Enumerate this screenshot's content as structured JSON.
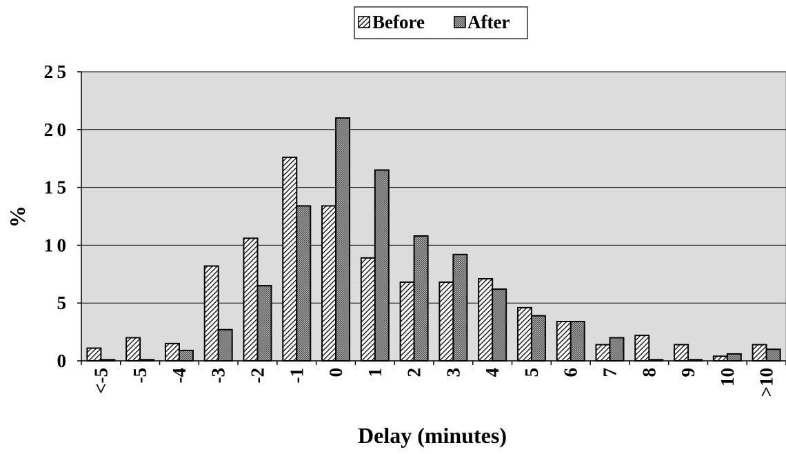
{
  "chart_data": {
    "type": "bar",
    "categories": [
      "<-5",
      "-5",
      "-4",
      "-3",
      "-2",
      "-1",
      "0",
      "1",
      "2",
      "3",
      "4",
      "5",
      "6",
      "7",
      "8",
      "9",
      "10",
      ">10"
    ],
    "series": [
      {
        "name": "Before",
        "values": [
          1.1,
          2.0,
          1.5,
          8.2,
          10.6,
          17.6,
          13.4,
          8.9,
          6.8,
          6.8,
          7.1,
          4.6,
          3.4,
          1.4,
          2.2,
          1.4,
          0.4,
          1.4
        ]
      },
      {
        "name": "After",
        "values": [
          0.1,
          0.1,
          0.9,
          2.7,
          6.5,
          13.4,
          21.0,
          16.5,
          10.8,
          9.2,
          6.2,
          3.9,
          3.4,
          2.0,
          0.1,
          0.1,
          0.6,
          1.0
        ]
      }
    ],
    "xlabel": "Delay  (minutes)",
    "ylabel": "%",
    "ylim": [
      0,
      25
    ],
    "yticks": [
      0,
      5,
      10,
      15,
      20,
      25
    ],
    "grid": true,
    "legend": "top-center",
    "colors": {
      "plot_background": "#dcdcdc",
      "bar_outline": "#000000",
      "before_hatch": "#000000",
      "after_fill": "#8a8a8a"
    }
  }
}
